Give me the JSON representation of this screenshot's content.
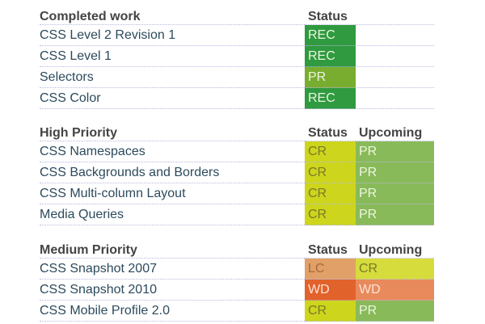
{
  "colors": {
    "REC": "#2f9a3f",
    "PR_status": "#79ad30",
    "CR": "#cdd51c",
    "PR_upcoming": "#89ba59",
    "LC": "#e1a068",
    "WD_status": "#e2622b",
    "WD_upcoming": "#e98a5c",
    "CR_upcoming": "#d6dc3c"
  },
  "sections": [
    {
      "title": "Completed work",
      "status_header": "Status",
      "upcoming_header": "",
      "rows": [
        {
          "name": "CSS Level 2 Revision 1",
          "status": "REC"
        },
        {
          "name": "CSS Level 1",
          "status": "REC"
        },
        {
          "name": "Selectors",
          "status": "PR"
        },
        {
          "name": "CSS Color",
          "status": "REC"
        }
      ]
    },
    {
      "title": "High Priority",
      "status_header": "Status",
      "upcoming_header": "Upcoming",
      "rows": [
        {
          "name": "CSS Namespaces",
          "status": "CR",
          "upcoming": "PR"
        },
        {
          "name": "CSS Backgrounds and Borders",
          "status": "CR",
          "upcoming": "PR"
        },
        {
          "name": "CSS Multi-column Layout",
          "status": "CR",
          "upcoming": "PR"
        },
        {
          "name": "Media Queries",
          "status": "CR",
          "upcoming": "PR"
        }
      ]
    },
    {
      "title": "Medium Priority",
      "status_header": "Status",
      "upcoming_header": "Upcoming",
      "rows": [
        {
          "name": "CSS Snapshot 2007",
          "status": "LC",
          "upcoming": "CR"
        },
        {
          "name": "CSS Snapshot 2010",
          "status": "WD",
          "upcoming": "WD"
        },
        {
          "name": "CSS Mobile Profile 2.0",
          "status": "CR",
          "upcoming": "PR"
        }
      ]
    }
  ]
}
